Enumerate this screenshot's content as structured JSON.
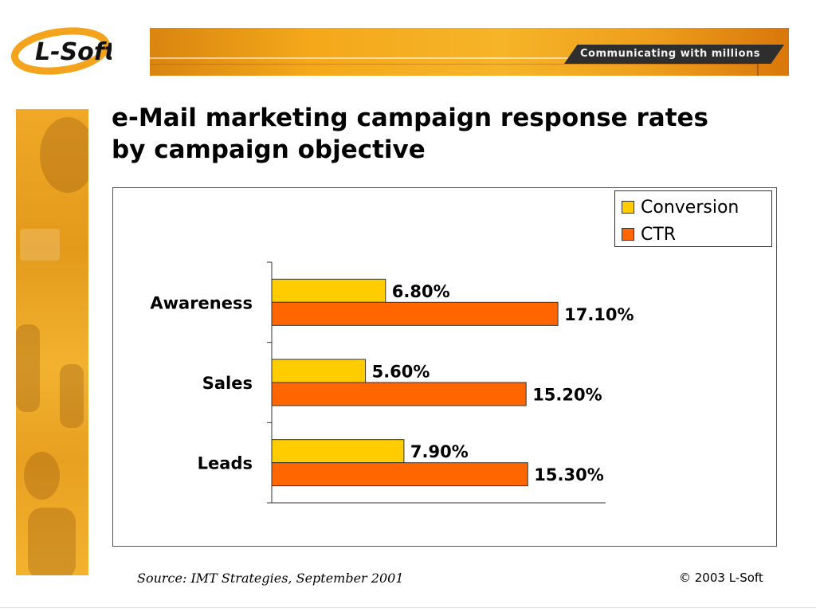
{
  "header": {
    "logo_text": "L-Soft",
    "tagline": "Communicating with millions"
  },
  "slide": {
    "title_line1": "e-Mail marketing campaign response rates",
    "title_line2": "by campaign objective"
  },
  "colors": {
    "conversion": "#ffcc00",
    "ctr": "#ff6600",
    "banner": "#f4a81a"
  },
  "chart_data": {
    "type": "bar",
    "orientation": "horizontal",
    "categories": [
      "Awareness",
      "Sales",
      "Leads"
    ],
    "series": [
      {
        "name": "Conversion",
        "values": [
          6.8,
          5.6,
          7.9
        ],
        "labels": [
          "6.80%",
          "5.60%",
          "7.90%"
        ],
        "color": "#ffcc00"
      },
      {
        "name": "CTR",
        "values": [
          17.1,
          15.2,
          15.3
        ],
        "labels": [
          "17.10%",
          "15.20%",
          "15.30%"
        ],
        "color": "#ff6600"
      }
    ],
    "xlim": [
      0,
      20
    ],
    "grid": false,
    "legend_position": "top-right"
  },
  "footer": {
    "source": "Source: IMT Strategies, September 2001",
    "copyright": "© 2003 L-Soft"
  }
}
